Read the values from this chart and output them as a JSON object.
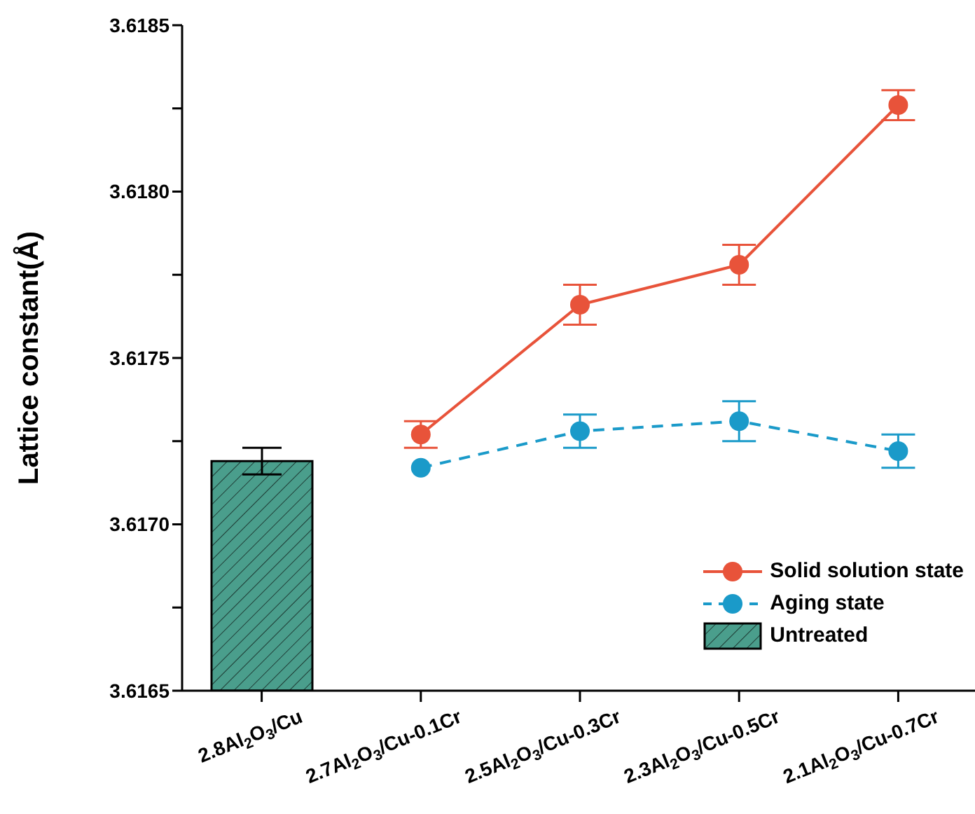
{
  "chart_data": {
    "type": "line",
    "ylabel": "Lattice constant(Å)",
    "categories": [
      "2.8Al$_{2}$O$_{3}$/Cu",
      "2.7Al$_{2}$O$_{3}$/Cu-0.1Cr",
      "2.5Al$_{2}$O$_{3}$/Cu-0.3Cr",
      "2.3Al$_{2}$O$_{3}$/Cu-0.5Cr",
      "2.1Al$_{2}$O$_{3}$/Cu-0.7Cr"
    ],
    "series": [
      {
        "name": "Solid solution state",
        "color": "#e8533a",
        "line_style": "solid",
        "values": [
          null,
          3.61727,
          3.61766,
          3.61778,
          3.61826
        ],
        "errors": [
          null,
          4e-05,
          6e-05,
          6e-05,
          4.5e-05
        ]
      },
      {
        "name": "Aging state",
        "color": "#1a9ac9",
        "line_style": "dashed",
        "values": [
          null,
          3.61717,
          3.61728,
          3.61731,
          3.61722
        ],
        "errors": [
          null,
          null,
          5e-05,
          6e-05,
          5e-05
        ]
      },
      {
        "name": "Untreated",
        "type": "bar",
        "color": "#4a9e8c",
        "values": [
          3.61719,
          null,
          null,
          null,
          null
        ],
        "errors": [
          4e-05,
          null,
          null,
          null,
          null
        ]
      }
    ],
    "ylim": [
      3.6165,
      3.6185
    ],
    "yticks": [
      {
        "value": 3.6165,
        "label": "3.6165"
      },
      {
        "value": 3.61675,
        "label": null
      },
      {
        "value": 3.617,
        "label": "3.6170"
      },
      {
        "value": 3.61725,
        "label": null
      },
      {
        "value": 3.6175,
        "label": "3.6175"
      },
      {
        "value": 3.61775,
        "label": null
      },
      {
        "value": 3.618,
        "label": "3.6180"
      },
      {
        "value": 3.61825,
        "label": null
      },
      {
        "value": 3.6185,
        "label": "3.6185"
      }
    ],
    "marker": "circle",
    "grid": false,
    "legend": "bottom right"
  }
}
